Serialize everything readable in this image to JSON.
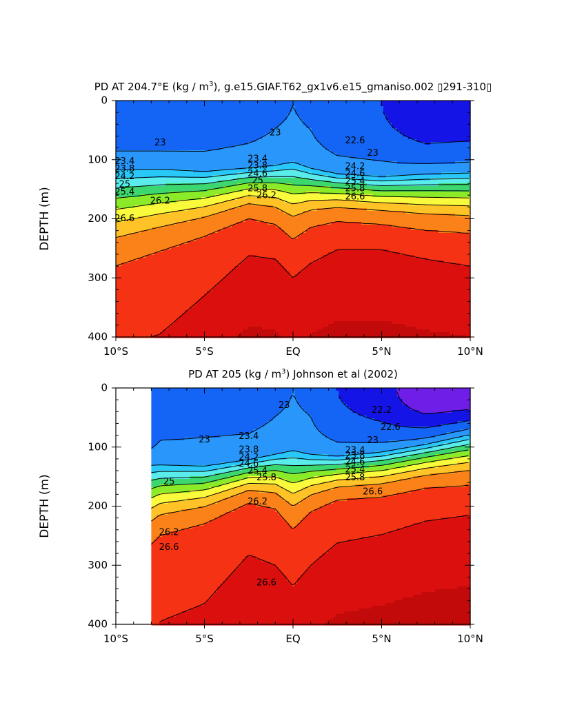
{
  "chart_data": [
    {
      "type": "heatmap",
      "title_prefix": "PD AT 204.7°E (kg / m",
      "title_suffix": "), g.e15.GIAF.T62_gx1v6.e15_gmaniso.002 ▯291-310▯",
      "title_superscript": "3",
      "xlabel": "",
      "ylabel": "DEPTH (m)",
      "xlim": [
        -10,
        10
      ],
      "ylim": [
        400,
        0
      ],
      "x_ticks": [
        "10°S",
        "5°S",
        "EQ",
        "5°N",
        "10°N"
      ],
      "y_ticks": [
        "0",
        "100",
        "200",
        "300",
        "400"
      ],
      "contour_labels": [
        "23",
        "23",
        "22.6",
        "23",
        "23.4",
        "23.4",
        "23.8",
        "23.8",
        "24.2",
        "24.2",
        "24.6",
        "24.6",
        "25",
        "25",
        "25.4",
        "25.4",
        "25.8",
        "25.8",
        "26.2",
        "26.2",
        "26.6",
        "26.6"
      ],
      "levels": [
        22.2,
        22.6,
        23.0,
        23.4,
        23.8,
        24.2,
        24.6,
        25.0,
        25.4,
        25.8,
        26.2,
        26.6
      ],
      "profile": {
        "lat": [
          -10,
          -7.5,
          -5,
          -2.5,
          -1,
          0,
          1,
          2.5,
          5,
          7.5,
          10
        ],
        "sfc": [
          22.7,
          22.7,
          22.75,
          22.85,
          22.95,
          23.0,
          22.95,
          22.7,
          22.6,
          22.25,
          22.3
        ],
        "d1": [
          110,
          110,
          115,
          110,
          105,
          98,
          110,
          120,
          125,
          120,
          118
        ],
        "d2": [
          280,
          255,
          230,
          200,
          210,
          235,
          215,
          205,
          210,
          220,
          225
        ],
        "d3": [
          420,
          395,
          330,
          262,
          268,
          300,
          275,
          252,
          252,
          268,
          280
        ]
      }
    },
    {
      "type": "heatmap",
      "title_prefix": "PD AT 205 (kg / m",
      "title_suffix": ") Johnson et al (2002)",
      "title_superscript": "3",
      "xlabel": "",
      "ylabel": "DEPTH (m)",
      "xlim": [
        -10,
        10
      ],
      "ylim": [
        400,
        0
      ],
      "data_xlim": [
        -8,
        10
      ],
      "x_ticks": [
        "10°S",
        "5°S",
        "EQ",
        "5°N",
        "10°N"
      ],
      "y_ticks": [
        "0",
        "100",
        "200",
        "300",
        "400"
      ],
      "contour_labels": [
        "22.2",
        "23",
        "22.6",
        "23",
        "23",
        "23.4",
        "23.4",
        "23.8",
        "23.8",
        "24.2",
        "24.6",
        "24.6",
        "25",
        "25.4",
        "25.4",
        "25.8",
        "25.8",
        "26.2",
        "26.2",
        "26.6",
        "26.6",
        "26.6"
      ],
      "levels": [
        22.2,
        22.6,
        23.0,
        23.4,
        23.8,
        24.2,
        24.6,
        25.0,
        25.4,
        25.8,
        26.2,
        26.6
      ],
      "profile": {
        "lat": [
          -8,
          -7.5,
          -5,
          -2.5,
          -1,
          0,
          1,
          2.5,
          5,
          7.5,
          10
        ],
        "sfc": [
          22.6,
          22.8,
          22.85,
          22.85,
          22.95,
          23.0,
          22.95,
          22.6,
          22.35,
          21.9,
          21.9
        ],
        "d1": [
          125,
          125,
          128,
          118,
          108,
          100,
          108,
          112,
          105,
          92,
          75
        ],
        "d2": [
          265,
          250,
          230,
          195,
          205,
          240,
          210,
          190,
          185,
          170,
          165
        ],
        "d3": [
          420,
          395,
          365,
          282,
          300,
          335,
          300,
          262,
          248,
          225,
          215
        ]
      }
    }
  ]
}
